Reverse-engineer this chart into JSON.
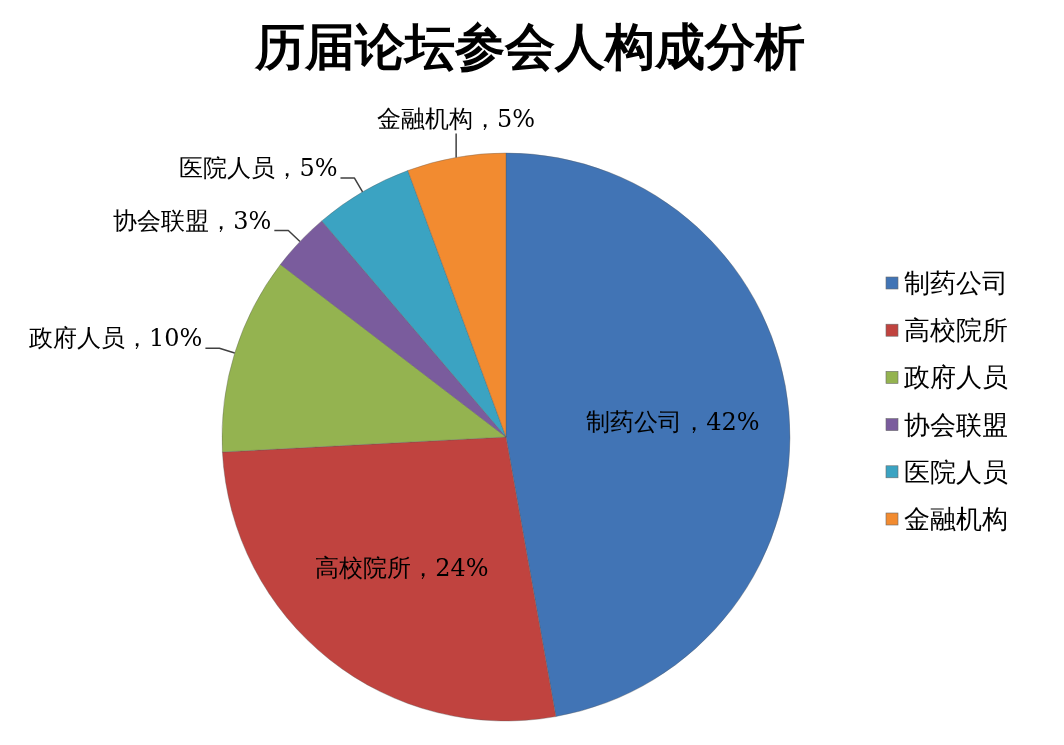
{
  "chart_data": {
    "type": "pie",
    "title": "历届论坛参会人构成分析",
    "categories": [
      "制药公司",
      "高校院所",
      "政府人员",
      "协会联盟",
      "医院人员",
      "金融机构"
    ],
    "values": [
      42,
      24,
      10,
      3,
      5,
      5
    ],
    "colors": [
      "#4174b5",
      "#c0433f",
      "#94b350",
      "#7a5c9d",
      "#3ba3c2",
      "#f28b30"
    ],
    "value_labels": [
      "制药公司，42%",
      "高校院所，24%",
      "政府人员，10%",
      "协会联盟，3%",
      "医院人员，5%",
      "金融机构，5%"
    ],
    "legend": "right"
  }
}
